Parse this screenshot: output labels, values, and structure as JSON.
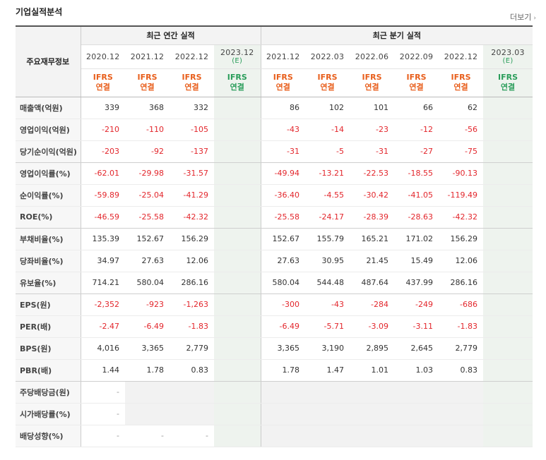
{
  "section_title": "기업실적분석",
  "more_link": "더보기",
  "header": {
    "label": "주요재무정보",
    "annual_group": "최근 연간 실적",
    "quarter_group": "최근 분기 실적",
    "annual_periods": [
      "2020.12",
      "2021.12",
      "2022.12",
      "2023.12"
    ],
    "annual_estimate": "(E)",
    "quarter_periods": [
      "2021.12",
      "2022.03",
      "2022.06",
      "2022.09",
      "2022.12",
      "2023.03"
    ],
    "quarter_estimate": "(E)",
    "ifrs_top": "IFRS",
    "ifrs_bottom": "연결"
  },
  "rows": [
    {
      "label": "매출액(억원)",
      "annual": [
        "339",
        "368",
        "332",
        ""
      ],
      "quarter": [
        "86",
        "102",
        "101",
        "66",
        "62",
        ""
      ]
    },
    {
      "label": "영업이익(억원)",
      "annual": [
        "-210",
        "-110",
        "-105",
        ""
      ],
      "quarter": [
        "-43",
        "-14",
        "-23",
        "-12",
        "-56",
        ""
      ]
    },
    {
      "label": "당기순이익(억원)",
      "annual": [
        "-203",
        "-92",
        "-137",
        ""
      ],
      "quarter": [
        "-31",
        "-5",
        "-31",
        "-27",
        "-75",
        ""
      ]
    },
    {
      "label": "영업이익률(%)",
      "annual": [
        "-62.01",
        "-29.98",
        "-31.57",
        ""
      ],
      "quarter": [
        "-49.94",
        "-13.21",
        "-22.53",
        "-18.55",
        "-90.13",
        ""
      ]
    },
    {
      "label": "순이익률(%)",
      "annual": [
        "-59.89",
        "-25.04",
        "-41.29",
        ""
      ],
      "quarter": [
        "-36.40",
        "-4.55",
        "-30.42",
        "-41.05",
        "-119.49",
        ""
      ]
    },
    {
      "label": "ROE(%)",
      "annual": [
        "-46.59",
        "-25.58",
        "-42.32",
        ""
      ],
      "quarter": [
        "-25.58",
        "-24.17",
        "-28.39",
        "-28.63",
        "-42.32",
        ""
      ]
    },
    {
      "label": "부채비율(%)",
      "annual": [
        "135.39",
        "152.67",
        "156.29",
        ""
      ],
      "quarter": [
        "152.67",
        "155.79",
        "165.21",
        "171.02",
        "156.29",
        ""
      ]
    },
    {
      "label": "당좌비율(%)",
      "annual": [
        "34.97",
        "27.63",
        "12.06",
        ""
      ],
      "quarter": [
        "27.63",
        "30.95",
        "21.45",
        "15.49",
        "12.06",
        ""
      ]
    },
    {
      "label": "유보율(%)",
      "annual": [
        "714.21",
        "580.04",
        "286.16",
        ""
      ],
      "quarter": [
        "580.04",
        "544.48",
        "487.64",
        "437.99",
        "286.16",
        ""
      ]
    },
    {
      "label": "EPS(원)",
      "annual": [
        "-2,352",
        "-923",
        "-1,263",
        ""
      ],
      "quarter": [
        "-300",
        "-43",
        "-284",
        "-249",
        "-686",
        ""
      ]
    },
    {
      "label": "PER(배)",
      "annual": [
        "-2.47",
        "-6.49",
        "-1.83",
        ""
      ],
      "quarter": [
        "-6.49",
        "-5.71",
        "-3.09",
        "-3.11",
        "-1.83",
        ""
      ]
    },
    {
      "label": "BPS(원)",
      "annual": [
        "4,016",
        "3,365",
        "2,779",
        ""
      ],
      "quarter": [
        "3,365",
        "3,190",
        "2,895",
        "2,645",
        "2,779",
        ""
      ]
    },
    {
      "label": "PBR(배)",
      "annual": [
        "1.44",
        "1.78",
        "0.83",
        ""
      ],
      "quarter": [
        "1.78",
        "1.47",
        "1.01",
        "1.03",
        "0.83",
        ""
      ]
    },
    {
      "label": "주당배당금(원)",
      "annual": [
        "-",
        "",
        "",
        ""
      ],
      "quarter": [
        "",
        "",
        "",
        "",
        "",
        ""
      ],
      "grey": true
    },
    {
      "label": "시가배당률(%)",
      "annual": [
        "-",
        "",
        "",
        ""
      ],
      "quarter": [
        "",
        "",
        "",
        "",
        "",
        ""
      ],
      "grey": true
    },
    {
      "label": "배당성향(%)",
      "annual": [
        "-",
        "-",
        "-",
        ""
      ],
      "quarter": [
        "",
        "",
        "",
        "",
        "",
        ""
      ],
      "grey": true
    }
  ],
  "group_breaks": [
    2,
    5,
    8,
    12
  ]
}
